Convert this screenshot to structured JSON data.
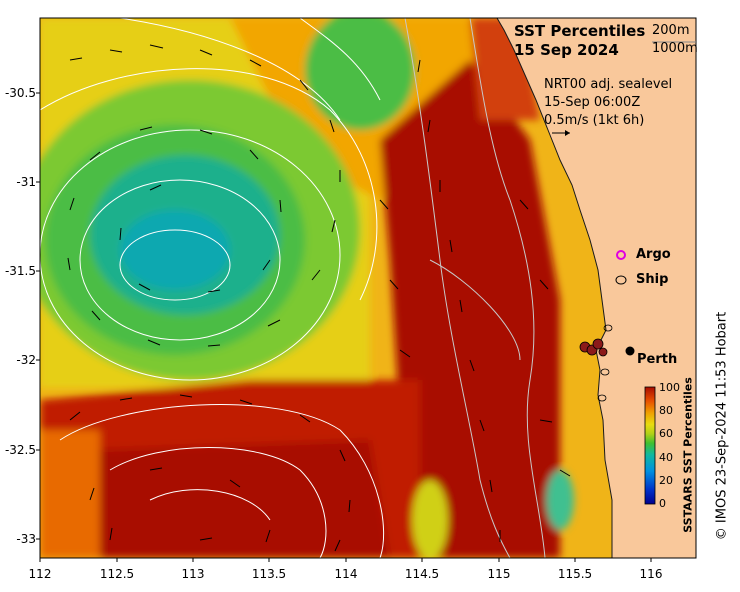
{
  "map": {
    "title_line1": "SST Percentiles",
    "title_line2": "15 Sep 2024",
    "contour_legend": [
      "200m",
      "1000m"
    ],
    "current_source": "NRT00 adj. sealevel",
    "current_time": "15-Sep 06:00Z",
    "current_scale": "0.5m/s (1kt 6h)",
    "markers": {
      "argo_label": "Argo",
      "ship_label": "Ship",
      "city_label": "Perth"
    },
    "side_credit": "© IMOS 23-Sep-2024 11:53 Hobart",
    "lon_ticks": [
      "112",
      "112.5",
      "113",
      "113.5",
      "114",
      "114.5",
      "115",
      "115.5",
      "116"
    ],
    "lat_ticks": [
      "-30.5",
      "-31",
      "-31.5",
      "-32",
      "-32.5",
      "-33"
    ],
    "colorbar": {
      "title": "SSTAARS SST Percentiles",
      "ticks": [
        "100",
        "80",
        "60",
        "40",
        "20",
        "0"
      ]
    },
    "colors": {
      "land": "#f9c89b",
      "coast": "#1a1a1a",
      "warm": "#a80c00",
      "cold": "#0a1e8a"
    }
  }
}
